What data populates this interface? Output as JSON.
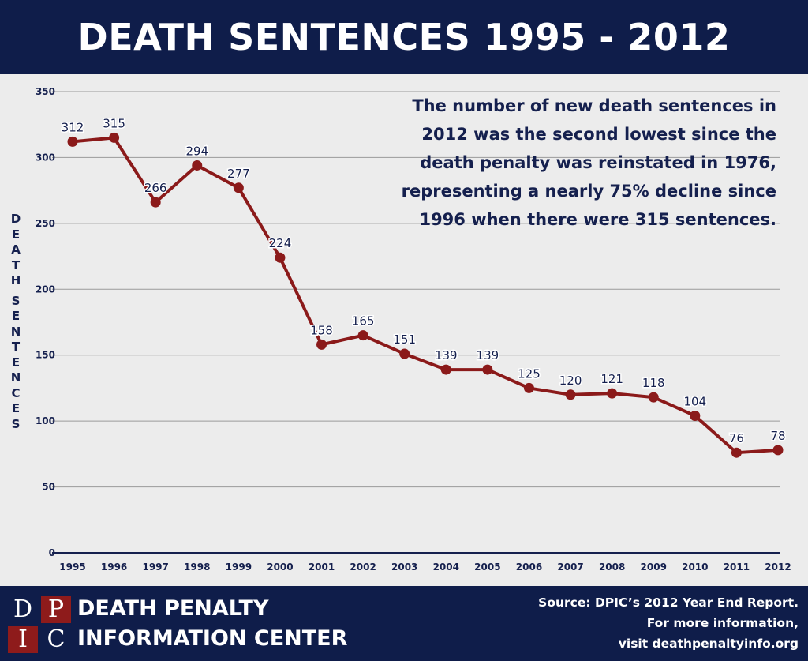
{
  "header": {
    "title": "DEATH SENTENCES 1995 - 2012"
  },
  "annotation": {
    "lines": [
      "The number of new death sentences in",
      "2012 was the second lowest since the",
      "death penalty was reinstated in 1976,",
      "representing a nearly 75% decline since",
      "1996 when there were 315 sentences."
    ]
  },
  "colors": {
    "navy": "#0f1d4a",
    "line": "#8b1a1a",
    "text": "#15204e",
    "background": "#ececec",
    "grid": "#9a9a9a"
  },
  "chart_data": {
    "type": "line",
    "title": "DEATH SENTENCES 1995 - 2012",
    "ylabel": "DEATH SENTENCES",
    "xlabel": "",
    "ylim": [
      0,
      350
    ],
    "yticks": [
      0,
      50,
      100,
      150,
      200,
      250,
      300,
      350
    ],
    "grid": true,
    "x": [
      "1995",
      "1996",
      "1997",
      "1998",
      "1999",
      "2000",
      "2001",
      "2002",
      "2003",
      "2004",
      "2005",
      "2006",
      "2007",
      "2008",
      "2009",
      "2010",
      "2011",
      "2012"
    ],
    "series": [
      {
        "values": [
          312,
          315,
          266,
          294,
          277,
          224,
          158,
          165,
          151,
          139,
          139,
          125,
          120,
          121,
          118,
          104,
          76,
          78
        ]
      }
    ]
  },
  "footer": {
    "logo_letters": [
      "D",
      "P",
      "I",
      "C"
    ],
    "org_line1": "DEATH PENALTY",
    "org_line2": "INFORMATION CENTER",
    "source_line1": "Source: DPIC’s 2012 Year End Report.",
    "source_line2": "For more information,",
    "source_line3": "visit deathpenaltyinfo.org"
  }
}
